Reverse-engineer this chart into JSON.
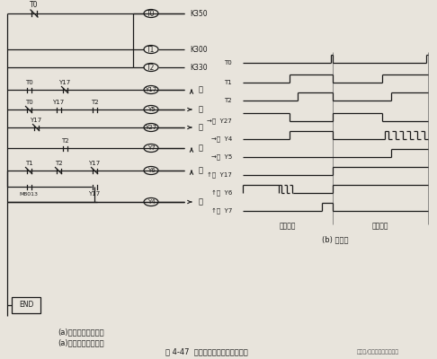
{
  "title": "图 4-47  十字路口交通灯控制梯形图",
  "subtitle_a": "(a)交通灯控制梯形图",
  "subtitle_b": "(b) 时序图",
  "watermark": "自家号/零基础电工电气学习",
  "bg_color": "#e8e4dc",
  "timer_values": [
    "K350",
    "K300",
    "K330"
  ],
  "section_labels": [
    "南北通行",
    "东西通行"
  ]
}
